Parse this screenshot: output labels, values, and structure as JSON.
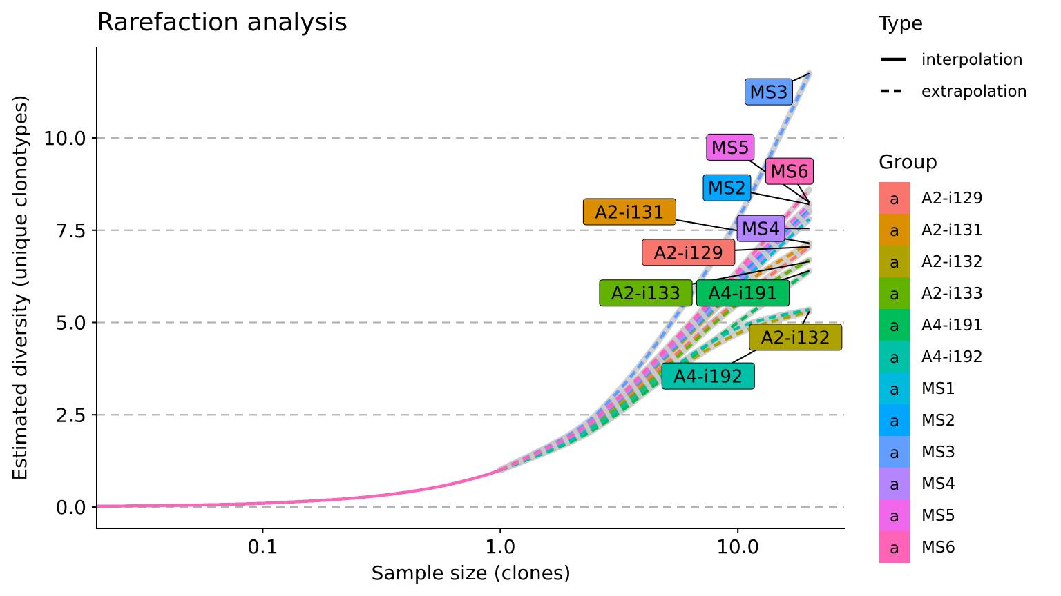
{
  "chart_data": {
    "type": "line",
    "title": "Rarefaction analysis",
    "xlabel": "Sample size (clones)",
    "ylabel": "Estimated diversity (unique clonotypes)",
    "x_scale": "log10",
    "xlim": [
      0.02,
      28
    ],
    "ylim": [
      -0.55,
      12.5
    ],
    "x_ticks": [
      {
        "value": 0.1,
        "label": "0.1"
      },
      {
        "value": 1.0,
        "label": "1.0"
      },
      {
        "value": 10.0,
        "label": "10.0"
      }
    ],
    "y_ticks": [
      {
        "value": 0.0,
        "label": "0.0"
      },
      {
        "value": 2.5,
        "label": "2.5"
      },
      {
        "value": 5.0,
        "label": "5.0"
      },
      {
        "value": 7.5,
        "label": "7.5"
      },
      {
        "value": 10.0,
        "label": "10.0"
      }
    ],
    "grid": "horizontal dashed gridlines at y ticks",
    "interpolation_points": [
      [
        0.02,
        0.02
      ],
      [
        0.05,
        0.05
      ],
      [
        0.1,
        0.1
      ],
      [
        0.2,
        0.2
      ],
      [
        0.3,
        0.3
      ],
      [
        0.4,
        0.4
      ],
      [
        0.5,
        0.5
      ],
      [
        0.6,
        0.6
      ],
      [
        0.7,
        0.7
      ],
      [
        0.8,
        0.8
      ],
      [
        0.9,
        0.9
      ],
      [
        1.0,
        1.0
      ]
    ],
    "series": [
      {
        "name": "A2-i129",
        "color": "#F8766D",
        "extrapolation": [
          [
            1.0,
            1.0
          ],
          [
            2,
            1.85
          ],
          [
            3,
            2.65
          ],
          [
            5,
            3.9
          ],
          [
            10,
            5.6
          ],
          [
            20,
            7.05
          ]
        ]
      },
      {
        "name": "A2-i131",
        "color": "#DB8E00",
        "extrapolation": [
          [
            1.0,
            1.0
          ],
          [
            2,
            1.88
          ],
          [
            3,
            2.72
          ],
          [
            5,
            4.05
          ],
          [
            10,
            5.9
          ],
          [
            20,
            7.15
          ]
        ]
      },
      {
        "name": "A2-i132",
        "color": "#AEA200",
        "extrapolation": [
          [
            1.0,
            1.0
          ],
          [
            2,
            1.8
          ],
          [
            3,
            2.5
          ],
          [
            5,
            3.55
          ],
          [
            10,
            4.7
          ],
          [
            20,
            5.3
          ]
        ]
      },
      {
        "name": "A2-i133",
        "color": "#64B200",
        "extrapolation": [
          [
            1.0,
            1.0
          ],
          [
            2,
            1.84
          ],
          [
            3,
            2.6
          ],
          [
            5,
            3.8
          ],
          [
            10,
            5.5
          ],
          [
            20,
            6.7
          ]
        ]
      },
      {
        "name": "A4-i191",
        "color": "#00BD5C",
        "extrapolation": [
          [
            1.0,
            1.0
          ],
          [
            2,
            1.78
          ],
          [
            3,
            2.45
          ],
          [
            5,
            3.55
          ],
          [
            10,
            5.0
          ],
          [
            20,
            6.4
          ]
        ]
      },
      {
        "name": "A4-i192",
        "color": "#00C1A7",
        "extrapolation": [
          [
            1.0,
            1.0
          ],
          [
            2,
            1.82
          ],
          [
            3,
            2.55
          ],
          [
            5,
            3.65
          ],
          [
            10,
            4.85
          ],
          [
            20,
            5.35
          ]
        ]
      },
      {
        "name": "MS1",
        "color": "#00BADE",
        "extrapolation": [
          [
            1.0,
            1.0
          ],
          [
            2,
            1.9
          ],
          [
            3,
            2.75
          ],
          [
            5,
            4.1
          ],
          [
            10,
            6.0
          ],
          [
            20,
            7.8
          ]
        ]
      },
      {
        "name": "MS2",
        "color": "#00A6FF",
        "extrapolation": [
          [
            1.0,
            1.0
          ],
          [
            2,
            1.93
          ],
          [
            3,
            2.8
          ],
          [
            5,
            4.2
          ],
          [
            10,
            6.2
          ],
          [
            20,
            8.05
          ]
        ]
      },
      {
        "name": "MS3",
        "color": "#619CFF",
        "extrapolation": [
          [
            1.0,
            1.0
          ],
          [
            2,
            2.0
          ],
          [
            3,
            3.0
          ],
          [
            5,
            4.8
          ],
          [
            10,
            7.8
          ],
          [
            20,
            11.75
          ]
        ]
      },
      {
        "name": "MS4",
        "color": "#B385FF",
        "extrapolation": [
          [
            1.0,
            1.0
          ],
          [
            2,
            1.92
          ],
          [
            3,
            2.78
          ],
          [
            5,
            4.15
          ],
          [
            10,
            6.1
          ],
          [
            20,
            8.0
          ]
        ]
      },
      {
        "name": "MS5",
        "color": "#EF67EB",
        "extrapolation": [
          [
            1.0,
            1.0
          ],
          [
            2,
            1.94
          ],
          [
            3,
            2.82
          ],
          [
            5,
            4.25
          ],
          [
            10,
            6.3
          ],
          [
            20,
            8.2
          ]
        ]
      },
      {
        "name": "MS6",
        "color": "#FF63B6",
        "extrapolation": [
          [
            1.0,
            1.0
          ],
          [
            2,
            1.95
          ],
          [
            3,
            2.85
          ],
          [
            5,
            4.3
          ],
          [
            10,
            6.4
          ],
          [
            20,
            8.6
          ]
        ]
      }
    ],
    "labels": [
      {
        "text": "MS3",
        "series": "MS3",
        "x": 13.5,
        "y": 11.25,
        "target": [
          20,
          11.75
        ]
      },
      {
        "text": "MS5",
        "series": "MS5",
        "x": 9.3,
        "y": 9.75,
        "target": [
          20,
          8.25
        ]
      },
      {
        "text": "MS6",
        "series": "MS6",
        "x": 16.5,
        "y": 9.1,
        "target": [
          20,
          8.25
        ]
      },
      {
        "text": "MS2",
        "series": "MS2",
        "x": 9.0,
        "y": 8.65,
        "target": [
          20,
          8.2
        ]
      },
      {
        "text": "A2-i131",
        "series": "A2-i131",
        "x": 3.5,
        "y": 8.0,
        "target": [
          20,
          7.15
        ]
      },
      {
        "text": "MS4",
        "series": "MS4",
        "x": 12.5,
        "y": 7.55,
        "target": [
          20,
          7.55
        ]
      },
      {
        "text": "A2-i129",
        "series": "A2-i129",
        "x": 6.2,
        "y": 6.9,
        "target": [
          20,
          7.05
        ]
      },
      {
        "text": "A2-i133",
        "series": "A2-i133",
        "x": 4.1,
        "y": 5.8,
        "target": [
          20,
          6.65
        ]
      },
      {
        "text": "A4-i191",
        "series": "A4-i191",
        "x": 10.5,
        "y": 5.8,
        "target": [
          20,
          6.4
        ]
      },
      {
        "text": "A2-i132",
        "series": "A2-i132",
        "x": 17.5,
        "y": 4.6,
        "target": [
          20,
          5.3
        ]
      },
      {
        "text": "A4-i192",
        "series": "A4-i192",
        "x": 7.5,
        "y": 3.55,
        "target": [
          15,
          4.6
        ]
      }
    ],
    "legend": {
      "position": "right",
      "type_title": "Type",
      "type_items": [
        {
          "label": "interpolation",
          "style": "solid"
        },
        {
          "label": "extrapolation",
          "style": "dashed"
        }
      ],
      "group_title": "Group",
      "key_glyph": "a"
    }
  }
}
